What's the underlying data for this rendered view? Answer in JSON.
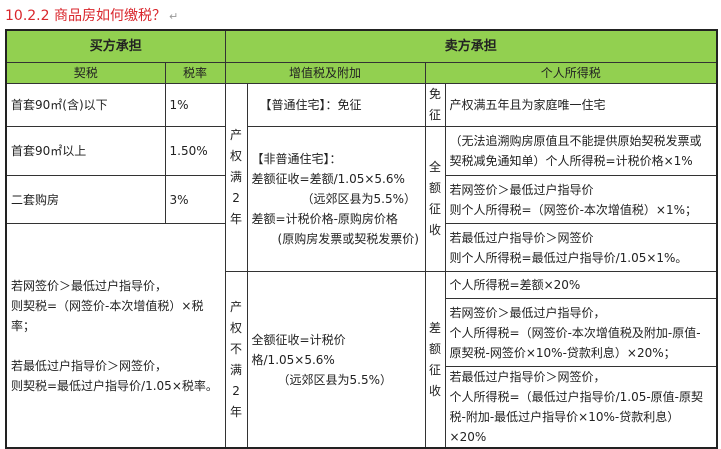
{
  "title": "10.2.2 商品房如何缴税？",
  "header": {
    "buyer": "买方承担",
    "seller": "卖方承担",
    "deed_tax": "契税",
    "rate": "税率",
    "vat": "增值税及附加",
    "income_tax": "个人所得税"
  },
  "buyer_rows": [
    {
      "label": "首套90㎡(含)以下",
      "rate": "1%"
    },
    {
      "label": "首套90㎡以上",
      "rate": "1.50%"
    },
    {
      "label": "二套购房",
      "rate": "3%"
    }
  ],
  "buyer_formula": [
    "若网签价＞最低过户指导价，",
    "则契税=（网签价-本次增值税）×税率；",
    "若最低过户指导价＞网签价，",
    "则契税=最低过户指导价/1.05×税率。"
  ],
  "over2": {
    "label": "产权满2年",
    "vat_ordinary": "【普通住宅】：免征",
    "vat_nonordinary": [
      "【非普通住宅】：",
      "差额征收=差额/1.05×5.6%",
      "（远郊区县为5.5%）",
      "差额=计税价格-原购房价格",
      "(原购房发票或契税发票价)"
    ],
    "exempt_label": "免征",
    "exempt_text": "产权满五年且为家庭唯一住宅",
    "full_label": "全额征收",
    "full_rows": [
      [
        "（无法追溯购房原值且不能提供原始契税发票或契税减免通知单）个人所得税=计税价格×1%"
      ],
      [
        "若网签价＞最低过户指导价",
        "则个人所得税=（网签价-本次增值税）×1%；"
      ],
      [
        "若最低过户指导价＞网签价",
        "则个人所得税=最低过户指导价/1.05×1%。"
      ]
    ]
  },
  "under2": {
    "label": "产权不满2年",
    "vat": [
      "全额征收=计税价格/1.05×5.6%",
      "（远郊区县为5.5%）"
    ],
    "diff_label": "差额征收",
    "rows": [
      [
        "个人所得税=差额×20%"
      ],
      [
        "若网签价＞最低过户指导价，",
        "个人所得税=（网签价-本次增值税及附加-原值-原契税-网签价×10%-贷款利息）×20%；"
      ],
      [
        "若最低过户指导价＞网签价，",
        "个人所得税=（最低过户指导价/1.05-原值-原契税-附加-最低过户指导价×10%-贷款利息）×20%"
      ]
    ]
  },
  "colors": {
    "header_bg": "#92d050",
    "title": "#d9262c"
  }
}
